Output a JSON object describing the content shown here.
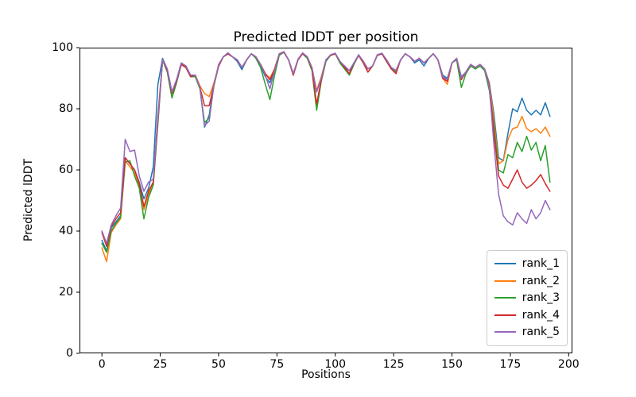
{
  "title": "Predicted lDDT per position",
  "xlabel": "Positions",
  "ylabel": "Predicted lDDT",
  "colors": {
    "rank_1": "#1f77b4",
    "rank_2": "#ff7f0e",
    "rank_3": "#2ca02c",
    "rank_4": "#d62728",
    "rank_5": "#9467bd",
    "spine": "#000000",
    "legend_border": "#cccccc",
    "background": "#ffffff"
  },
  "chart_data": {
    "type": "line",
    "title": "Predicted lDDT per position",
    "xlabel": "Positions",
    "ylabel": "Predicted lDDT",
    "xlim": [
      -9.6,
      201.6
    ],
    "ylim": [
      0,
      100
    ],
    "x_ticks": [
      0,
      25,
      50,
      75,
      100,
      125,
      150,
      175,
      200
    ],
    "y_ticks": [
      0,
      20,
      40,
      60,
      80,
      100
    ],
    "grid": false,
    "legend_position": "lower right",
    "x_start": 0,
    "x_step": 2,
    "series": [
      {
        "name": "rank_1",
        "color": "#1f77b4",
        "values": [
          37,
          33.5,
          41,
          43,
          45,
          64,
          62,
          60,
          56,
          50.5,
          54,
          61,
          88,
          96.5,
          93,
          85.5,
          89.5,
          95,
          94,
          91,
          91,
          87,
          74,
          78,
          88,
          94,
          97,
          98,
          97,
          95.5,
          92.8,
          96,
          98,
          97,
          94,
          90.5,
          88.5,
          92.5,
          98,
          98.5,
          96,
          91.5,
          96,
          98.2,
          97,
          93,
          85.5,
          90,
          96,
          97.5,
          98,
          95.5,
          93.5,
          92.5,
          95,
          97.5,
          95.5,
          93,
          94,
          97.5,
          98,
          95.5,
          93.5,
          92.5,
          96,
          98,
          97,
          95,
          96,
          94,
          96.5,
          98,
          96,
          91,
          90,
          95,
          96.5,
          90.5,
          92,
          94.5,
          93.5,
          94.5,
          93,
          88.5,
          78,
          64,
          63,
          72,
          80,
          79,
          83.5,
          79.5,
          78,
          79.5,
          78,
          82,
          77.5
        ]
      },
      {
        "name": "rank_2",
        "color": "#ff7f0e",
        "values": [
          34.5,
          30,
          39.5,
          42,
          44,
          63,
          61,
          59,
          55,
          47,
          52,
          56,
          78,
          96,
          92.5,
          85,
          89,
          94.5,
          93.5,
          90.5,
          91,
          87.5,
          85,
          84,
          88.5,
          94,
          97,
          98,
          97,
          96,
          93.5,
          96,
          98,
          97,
          94.5,
          91.5,
          90,
          93,
          98,
          98.5,
          96,
          91.5,
          96,
          98.2,
          97,
          93.5,
          86,
          90.5,
          96,
          97.5,
          98,
          95.5,
          94,
          92.5,
          95,
          97.5,
          95.5,
          93,
          94,
          97.5,
          98,
          96,
          93.5,
          92.5,
          96,
          98,
          97,
          95.5,
          96.5,
          95,
          96.5,
          98,
          96,
          90,
          88,
          95,
          96.5,
          90,
          92,
          94.5,
          93.5,
          94.5,
          93,
          88,
          76,
          62,
          63,
          70,
          73.5,
          74,
          77.5,
          73.5,
          72.5,
          73.5,
          72,
          74,
          71
        ]
      },
      {
        "name": "rank_3",
        "color": "#2ca02c",
        "values": [
          36,
          33,
          40,
          42.5,
          44.5,
          62.5,
          63,
          58,
          54,
          44,
          51,
          55,
          75,
          96,
          92,
          83.5,
          88.5,
          94.5,
          93.5,
          90.5,
          90.5,
          86.5,
          75.5,
          77,
          87.5,
          94,
          97,
          98,
          97,
          96,
          93.5,
          96,
          98,
          96.5,
          93.5,
          88,
          83,
          91,
          97.5,
          98.5,
          96,
          91,
          96,
          98,
          96.5,
          92.5,
          79.5,
          89,
          95.5,
          97.5,
          98,
          95,
          93,
          91,
          94.5,
          97.5,
          95,
          92,
          94,
          97.5,
          98,
          95.5,
          93,
          92,
          96,
          98,
          97,
          95.5,
          96.5,
          95,
          96.5,
          98,
          96,
          90.5,
          89.5,
          95,
          96,
          87,
          91.5,
          94,
          93,
          94,
          92.5,
          86,
          74,
          60,
          59,
          65,
          64,
          69,
          66,
          71,
          66.5,
          69,
          63,
          68,
          56
        ]
      },
      {
        "name": "rank_4",
        "color": "#d62728",
        "values": [
          39.5,
          35,
          41.5,
          44,
          46,
          64,
          62,
          60,
          55.5,
          48,
          53,
          56,
          76,
          96,
          92.5,
          85,
          89,
          94.5,
          93.5,
          90.5,
          91,
          87,
          81,
          81,
          88,
          94,
          97,
          98,
          97,
          96,
          93.5,
          96,
          98,
          97,
          94.5,
          91.5,
          89.5,
          93,
          98,
          98.5,
          96,
          91,
          96,
          98,
          97,
          93,
          81.5,
          89.5,
          96,
          97.5,
          98,
          95.5,
          93.5,
          91.5,
          95,
          97.5,
          95,
          92,
          94,
          97.5,
          98,
          95.5,
          93,
          91.5,
          96,
          98,
          97,
          95.5,
          96.5,
          95,
          96.5,
          98,
          96,
          90,
          89,
          95,
          96.5,
          89.5,
          92,
          94.5,
          93.5,
          94.5,
          93,
          87.5,
          72,
          58,
          55,
          54,
          57,
          60,
          56,
          54,
          55,
          56.5,
          58.5,
          55.5,
          53
        ]
      },
      {
        "name": "rank_5",
        "color": "#9467bd",
        "values": [
          40,
          36,
          42,
          45,
          47.5,
          70,
          66,
          66.5,
          58,
          53,
          56,
          57,
          77,
          96,
          93,
          85.5,
          89.5,
          95,
          94,
          91,
          91,
          87,
          74.5,
          76,
          88,
          94.5,
          97,
          98.3,
          97,
          96,
          93.5,
          96,
          98,
          97,
          94.5,
          91,
          86.5,
          92.5,
          98,
          98.7,
          96,
          91.5,
          96.2,
          98.3,
          97,
          93.5,
          85.5,
          90,
          96,
          97.7,
          98.2,
          95.5,
          94,
          92.5,
          95,
          97.7,
          95.5,
          93,
          94,
          97.7,
          98.2,
          96,
          93.5,
          92.5,
          96,
          98,
          97,
          95.5,
          96.5,
          95,
          96.5,
          98,
          96,
          90.5,
          89.5,
          95,
          96.5,
          90,
          92,
          94.5,
          93.5,
          94.5,
          93,
          87,
          68,
          52,
          45,
          43,
          42,
          46,
          44,
          42.5,
          47,
          44,
          46,
          50,
          47
        ]
      }
    ]
  }
}
